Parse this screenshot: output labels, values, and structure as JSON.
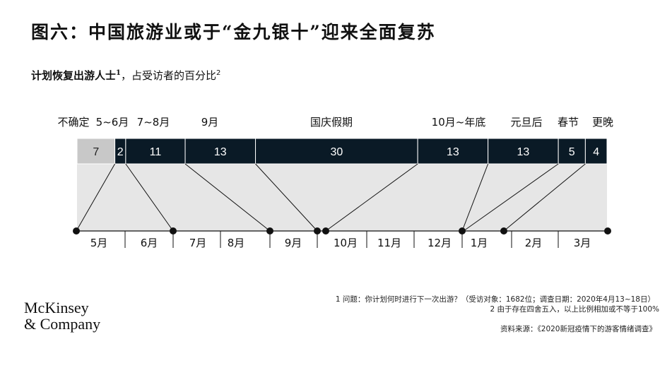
{
  "title": "图六：中国旅游业或于“金九银十”迎来全面复苏",
  "subtitle": {
    "bold": "计划恢复出游人士",
    "sup1": "1",
    "rest": "，占受访者的百分比",
    "sup2": "2"
  },
  "chart_data": {
    "type": "bar",
    "orientation": "horizontal-stacked",
    "categories": [
      "不确定",
      "5~6月",
      "7~8月",
      "9月",
      "国庆假期",
      "10月~年底",
      "元旦后",
      "春节",
      "更晚"
    ],
    "values": [
      7,
      2,
      11,
      13,
      30,
      13,
      13,
      5,
      4
    ],
    "unit": "%",
    "segment_colors": [
      "#c8c8c8",
      "#0a1a26",
      "#0a1a26",
      "#0a1a26",
      "#0a1a26",
      "#0a1a26",
      "#0a1a26",
      "#0a1a26",
      "#0a1a26"
    ],
    "background_panel_color": "#e6e6e6",
    "timeline_months": [
      "5月",
      "6月",
      "7月",
      "8月",
      "9月",
      "10月",
      "11月",
      "12月",
      "1月",
      "2月",
      "3月"
    ]
  },
  "footnotes": {
    "note1": "1 问题：你计划何时进行下一次出游？（受访对象：1682位；调查日期：2020年4月13~18日）",
    "note2": "2 由于存在四舍五入，以上比例相加或不等于100%",
    "source": "资料来源：《2020新冠疫情下的游客情绪调查》"
  },
  "logo": {
    "line1": "McKinsey",
    "line2": "& Company"
  }
}
